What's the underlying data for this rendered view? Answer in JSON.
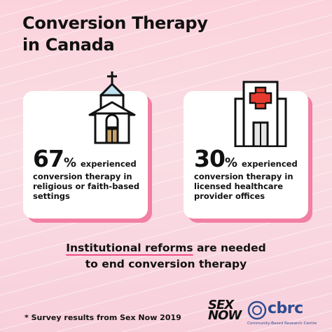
{
  "title_line1": "Conversion Therapy",
  "title_line2": "in Canada",
  "chart_data": {
    "type": "table",
    "title": "Conversion Therapy in Canada",
    "categories": [
      "religious or faith-based settings",
      "licensed healthcare provider offices"
    ],
    "values": [
      67,
      30
    ],
    "unit": "%"
  },
  "cards": [
    {
      "value": "67",
      "pct": "%",
      "lead": "experienced",
      "lines": [
        "conversion therapy in",
        "religious or faith-based",
        "settings"
      ],
      "icon": "church-icon"
    },
    {
      "value": "30",
      "pct": "%",
      "lead": "experienced",
      "lines": [
        "conversion therapy in",
        "licensed healthcare",
        "provider offices"
      ],
      "icon": "hospital-icon"
    }
  ],
  "reform": {
    "highlight": "Institutional reforms",
    "rest_line1": " are needed",
    "line2": "to end conversion therapy"
  },
  "footnote": "* Survey results from Sex Now 2019",
  "logos": {
    "sexnow_line1": "SEX",
    "sexnow_line2": "NOW",
    "cbrc_word": "cbrc",
    "cbrc_sub": "Community-Based Research Centre"
  },
  "colors": {
    "accent_pink": "#ee4d87",
    "card_shadow": "#f27fa4",
    "hospital_cross": "#e63a2e",
    "church_roof": "#bfe0ee",
    "door": "#c9a26b",
    "cbrc_blue": "#2e4b8f"
  }
}
